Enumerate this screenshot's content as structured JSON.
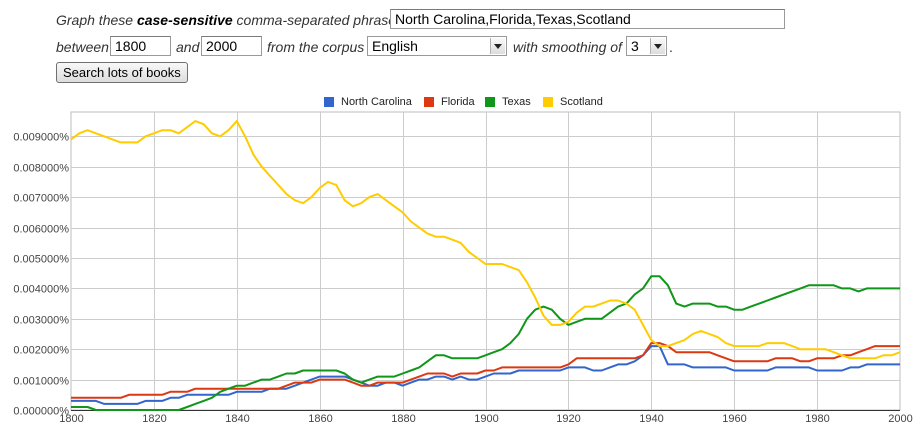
{
  "form": {
    "graph_prefix": "Graph these ",
    "graph_bold": "case-sensitive",
    "graph_suffix": " comma-separated phrases:",
    "phrases_value": "North Carolina,Florida,Texas,Scotland",
    "between_label": "between",
    "start_year": "1800",
    "and_label": "and",
    "end_year": "2000",
    "corpus_label": "from the corpus",
    "corpus_value": "English",
    "smoothing_label": "with smoothing of",
    "smoothing_value": "3",
    "period": ".",
    "search_button": "Search lots of books"
  },
  "chart_data": {
    "type": "line",
    "x": [
      1800,
      1802,
      1804,
      1806,
      1808,
      1810,
      1812,
      1814,
      1816,
      1818,
      1820,
      1822,
      1824,
      1826,
      1828,
      1830,
      1832,
      1834,
      1836,
      1838,
      1840,
      1842,
      1844,
      1846,
      1848,
      1850,
      1852,
      1854,
      1856,
      1858,
      1860,
      1862,
      1864,
      1866,
      1868,
      1870,
      1872,
      1874,
      1876,
      1878,
      1880,
      1882,
      1884,
      1886,
      1888,
      1890,
      1892,
      1894,
      1896,
      1898,
      1900,
      1902,
      1904,
      1906,
      1908,
      1910,
      1912,
      1914,
      1916,
      1918,
      1920,
      1922,
      1924,
      1926,
      1928,
      1930,
      1932,
      1934,
      1936,
      1938,
      1940,
      1942,
      1944,
      1946,
      1948,
      1950,
      1952,
      1954,
      1956,
      1958,
      1960,
      1962,
      1964,
      1966,
      1968,
      1970,
      1972,
      1974,
      1976,
      1978,
      1980,
      1982,
      1984,
      1986,
      1988,
      1990,
      1992,
      1994,
      1996,
      1998,
      2000
    ],
    "xlim": [
      1800,
      2000
    ],
    "ylim": [
      0,
      0.0098
    ],
    "x_ticks": [
      1800,
      1820,
      1840,
      1860,
      1880,
      1900,
      1920,
      1940,
      1960,
      1980,
      2000
    ],
    "y_ticks": [
      "0.000000%",
      "0.001000%",
      "0.002000%",
      "0.003000%",
      "0.004000%",
      "0.005000%",
      "0.006000%",
      "0.007000%",
      "0.008000%",
      "0.009000%"
    ],
    "y_tick_values": [
      0,
      0.001,
      0.002,
      0.003,
      0.004,
      0.005,
      0.006,
      0.007,
      0.008,
      0.009
    ],
    "grid": true,
    "legend_position": "top-center",
    "series": [
      {
        "name": "North Carolina",
        "color": "#3366cc",
        "values": [
          0.0003,
          0.0003,
          0.0003,
          0.0003,
          0.0002,
          0.0002,
          0.0002,
          0.0002,
          0.0002,
          0.0003,
          0.0003,
          0.0003,
          0.0004,
          0.0004,
          0.0005,
          0.0005,
          0.0005,
          0.0005,
          0.0005,
          0.0005,
          0.0006,
          0.0006,
          0.0006,
          0.0006,
          0.0007,
          0.0007,
          0.0007,
          0.0008,
          0.0009,
          0.001,
          0.0011,
          0.0011,
          0.0011,
          0.0011,
          0.001,
          0.0009,
          0.0008,
          0.0008,
          0.0009,
          0.0009,
          0.0008,
          0.0009,
          0.001,
          0.001,
          0.0011,
          0.0011,
          0.001,
          0.0011,
          0.001,
          0.001,
          0.0011,
          0.0012,
          0.0012,
          0.0012,
          0.0013,
          0.0013,
          0.0013,
          0.0013,
          0.0013,
          0.0013,
          0.0014,
          0.0014,
          0.0014,
          0.0013,
          0.0013,
          0.0014,
          0.0015,
          0.0015,
          0.0016,
          0.0018,
          0.0021,
          0.0021,
          0.0015,
          0.0015,
          0.0015,
          0.0014,
          0.0014,
          0.0014,
          0.0014,
          0.0014,
          0.0013,
          0.0013,
          0.0013,
          0.0013,
          0.0013,
          0.0014,
          0.0014,
          0.0014,
          0.0014,
          0.0014,
          0.0013,
          0.0013,
          0.0013,
          0.0013,
          0.0014,
          0.0014,
          0.0015,
          0.0015,
          0.0015,
          0.0015,
          0.0015
        ]
      },
      {
        "name": "Florida",
        "color": "#dc3912",
        "values": [
          0.0004,
          0.0004,
          0.0004,
          0.0004,
          0.0004,
          0.0004,
          0.0004,
          0.0005,
          0.0005,
          0.0005,
          0.0005,
          0.0005,
          0.0006,
          0.0006,
          0.0006,
          0.0007,
          0.0007,
          0.0007,
          0.0007,
          0.0007,
          0.0007,
          0.0007,
          0.0007,
          0.0007,
          0.0007,
          0.0007,
          0.0008,
          0.0009,
          0.0009,
          0.0009,
          0.001,
          0.001,
          0.001,
          0.001,
          0.0009,
          0.0008,
          0.0008,
          0.0009,
          0.0009,
          0.0009,
          0.0009,
          0.001,
          0.0011,
          0.0012,
          0.0012,
          0.0012,
          0.0011,
          0.0012,
          0.0012,
          0.0012,
          0.0013,
          0.0013,
          0.0014,
          0.0014,
          0.0014,
          0.0014,
          0.0014,
          0.0014,
          0.0014,
          0.0014,
          0.0015,
          0.0017,
          0.0017,
          0.0017,
          0.0017,
          0.0017,
          0.0017,
          0.0017,
          0.0017,
          0.0018,
          0.0022,
          0.0022,
          0.0021,
          0.0019,
          0.0019,
          0.0019,
          0.0019,
          0.0019,
          0.0018,
          0.0017,
          0.0016,
          0.0016,
          0.0016,
          0.0016,
          0.0016,
          0.0017,
          0.0017,
          0.0017,
          0.0016,
          0.0016,
          0.0017,
          0.0017,
          0.0017,
          0.0018,
          0.0018,
          0.0019,
          0.002,
          0.0021,
          0.0021,
          0.0021,
          0.0021
        ]
      },
      {
        "name": "Texas",
        "color": "#109618",
        "values": [
          0.0001,
          0.0001,
          0.0001,
          0.0,
          0.0,
          0.0,
          0.0,
          0.0,
          0.0,
          0.0,
          0.0,
          0.0,
          0.0,
          0.0,
          0.0001,
          0.0002,
          0.0003,
          0.0004,
          0.0006,
          0.0007,
          0.0008,
          0.0008,
          0.0009,
          0.001,
          0.001,
          0.0011,
          0.0012,
          0.0012,
          0.0013,
          0.0013,
          0.0013,
          0.0013,
          0.0013,
          0.0012,
          0.001,
          0.0009,
          0.001,
          0.0011,
          0.0011,
          0.0011,
          0.0012,
          0.0013,
          0.0014,
          0.0016,
          0.0018,
          0.0018,
          0.0017,
          0.0017,
          0.0017,
          0.0017,
          0.0018,
          0.0019,
          0.002,
          0.0022,
          0.0025,
          0.003,
          0.0033,
          0.0034,
          0.0033,
          0.003,
          0.0028,
          0.0029,
          0.003,
          0.003,
          0.003,
          0.0032,
          0.0034,
          0.0035,
          0.0038,
          0.004,
          0.0044,
          0.0044,
          0.0041,
          0.0035,
          0.0034,
          0.0035,
          0.0035,
          0.0035,
          0.0034,
          0.0034,
          0.0033,
          0.0033,
          0.0034,
          0.0035,
          0.0036,
          0.0037,
          0.0038,
          0.0039,
          0.004,
          0.0041,
          0.0041,
          0.0041,
          0.0041,
          0.004,
          0.004,
          0.0039,
          0.004,
          0.004,
          0.004,
          0.004,
          0.004
        ]
      },
      {
        "name": "Scotland",
        "color": "#ffcc00",
        "values": [
          0.0089,
          0.0091,
          0.0092,
          0.0091,
          0.009,
          0.0089,
          0.0088,
          0.0088,
          0.0088,
          0.009,
          0.0091,
          0.0092,
          0.0092,
          0.0091,
          0.0093,
          0.0095,
          0.0094,
          0.0091,
          0.009,
          0.0092,
          0.0095,
          0.009,
          0.0084,
          0.008,
          0.0077,
          0.0074,
          0.0071,
          0.0069,
          0.0068,
          0.007,
          0.0073,
          0.0075,
          0.0074,
          0.0069,
          0.0067,
          0.0068,
          0.007,
          0.0071,
          0.0069,
          0.0067,
          0.0065,
          0.0062,
          0.006,
          0.0058,
          0.0057,
          0.0057,
          0.0056,
          0.0055,
          0.0052,
          0.005,
          0.0048,
          0.0048,
          0.0048,
          0.0047,
          0.0046,
          0.0042,
          0.0037,
          0.0031,
          0.0028,
          0.0028,
          0.0029,
          0.0032,
          0.0034,
          0.0034,
          0.0035,
          0.0036,
          0.0036,
          0.0035,
          0.0033,
          0.0028,
          0.0023,
          0.0021,
          0.0021,
          0.0022,
          0.0023,
          0.0025,
          0.0026,
          0.0025,
          0.0024,
          0.0022,
          0.0021,
          0.0021,
          0.0021,
          0.0021,
          0.0022,
          0.0022,
          0.0022,
          0.0021,
          0.002,
          0.002,
          0.002,
          0.002,
          0.0019,
          0.0018,
          0.0017,
          0.0017,
          0.0017,
          0.0017,
          0.0018,
          0.0018,
          0.0019
        ]
      }
    ]
  }
}
